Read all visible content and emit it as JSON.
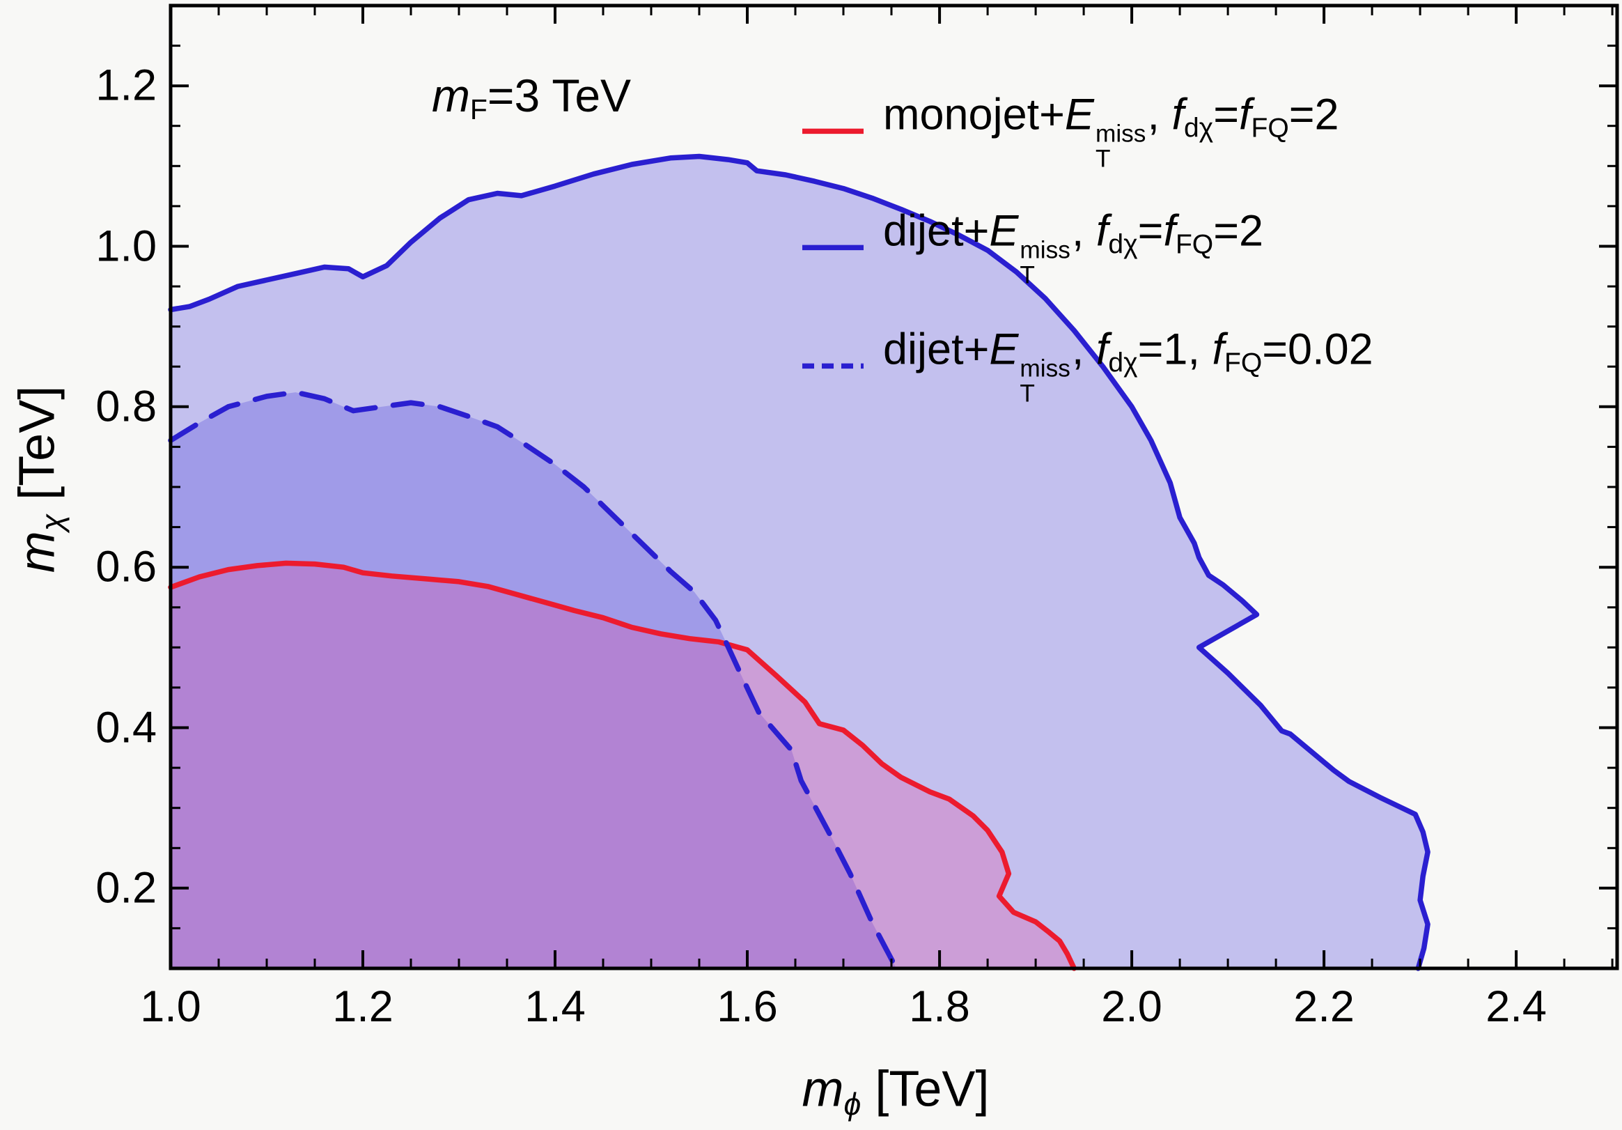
{
  "colors": {
    "background": "#f8f8f6",
    "frame": "#000000",
    "red_line": "#ec1b2e",
    "blue_line": "#2a1fd0",
    "blue_fill": "rgba(88,80,221,0.33)",
    "red_fill": "rgba(232,62,152,0.26)"
  },
  "annotation": {
    "text": "m_F=3 TeV",
    "segments": [
      [
        "i",
        "m"
      ],
      [
        "sub",
        "F"
      ],
      [
        "n",
        "=3 TeV"
      ]
    ]
  },
  "axes": {
    "x": {
      "label_text": "m_phi [TeV]",
      "label_segments": [
        [
          "i",
          "m"
        ],
        [
          "isub",
          "ϕ"
        ],
        [
          "n",
          " [TeV]"
        ]
      ],
      "tick_labels": [
        "1.0",
        "1.2",
        "1.4",
        "1.6",
        "1.8",
        "2.0",
        "2.2",
        "2.4"
      ],
      "tick_values": [
        1.0,
        1.2,
        1.4,
        1.6,
        1.8,
        2.0,
        2.2,
        2.4
      ],
      "minor_step": 0.05
    },
    "y": {
      "label_text": "m_chi [TeV]",
      "label_segments": [
        [
          "i",
          "m"
        ],
        [
          "isub",
          "χ"
        ],
        [
          "n",
          " [TeV]"
        ]
      ],
      "tick_labels": [
        "0.2",
        "0.4",
        "0.6",
        "0.8",
        "1.0",
        "1.2"
      ],
      "tick_values": [
        0.2,
        0.4,
        0.6,
        0.8,
        1.0,
        1.2
      ],
      "minor_step": 0.05
    }
  },
  "legend": {
    "items": [
      {
        "label_text": "monojet+E_T^miss, f_dchi=f_FQ=2",
        "segments": [
          [
            "n",
            "monojet+"
          ],
          [
            "i",
            "E"
          ],
          [
            "ss",
            "miss",
            "T"
          ],
          [
            "n",
            ", "
          ],
          [
            "i",
            "f"
          ],
          [
            "sub",
            "dχ"
          ],
          [
            "n",
            "="
          ],
          [
            "i",
            "f"
          ],
          [
            "sub",
            "FQ"
          ],
          [
            "n",
            "=2"
          ]
        ],
        "line_color": "#ec1b2e",
        "dash": "solid"
      },
      {
        "label_text": "dijet+E_T^miss, f_dchi=f_FQ=2",
        "segments": [
          [
            "n",
            "dijet+"
          ],
          [
            "i",
            "E"
          ],
          [
            "ss",
            "miss",
            "T"
          ],
          [
            "n",
            ", "
          ],
          [
            "i",
            "f"
          ],
          [
            "sub",
            "dχ"
          ],
          [
            "n",
            "="
          ],
          [
            "i",
            "f"
          ],
          [
            "sub",
            "FQ"
          ],
          [
            "n",
            "=2"
          ]
        ],
        "line_color": "#2a1fd0",
        "dash": "solid"
      },
      {
        "label_text": "dijet+E_T^miss, f_dchi=1, f_FQ=0.02",
        "segments": [
          [
            "n",
            "dijet+"
          ],
          [
            "i",
            "E"
          ],
          [
            "ss",
            "miss",
            "T"
          ],
          [
            "n",
            ", "
          ],
          [
            "i",
            "f"
          ],
          [
            "sub",
            "dχ"
          ],
          [
            "n",
            "=1, "
          ],
          [
            "i",
            "f"
          ],
          [
            "sub",
            "FQ"
          ],
          [
            "n",
            "=0.02"
          ]
        ],
        "line_color": "#2a1fd0",
        "dash": "dashed"
      }
    ]
  },
  "chart_data": {
    "type": "area",
    "subtype": "exclusion-contour-regions",
    "title": "m_F = 3 TeV",
    "xlabel": "m_phi [TeV]",
    "ylabel": "m_chi [TeV]",
    "xlim": [
      1.0,
      2.505
    ],
    "ylim": [
      0.1,
      1.3
    ],
    "grid": false,
    "legend_position": "top-right-inside",
    "series": [
      {
        "name": "monojet+ET_miss, f_dchi = f_FQ = 2",
        "style": "solid",
        "color": "#ec1b2e",
        "fill": "rgba(232,62,152,0.26)",
        "closes_to": [
          [
            1.94,
            0.1
          ],
          [
            1.0,
            0.1
          ]
        ],
        "points": [
          [
            1.0,
            0.575
          ],
          [
            1.03,
            0.588
          ],
          [
            1.06,
            0.597
          ],
          [
            1.09,
            0.602
          ],
          [
            1.12,
            0.605
          ],
          [
            1.15,
            0.604
          ],
          [
            1.18,
            0.6
          ],
          [
            1.2,
            0.593
          ],
          [
            1.23,
            0.589
          ],
          [
            1.27,
            0.585
          ],
          [
            1.3,
            0.582
          ],
          [
            1.33,
            0.576
          ],
          [
            1.36,
            0.566
          ],
          [
            1.39,
            0.556
          ],
          [
            1.42,
            0.546
          ],
          [
            1.45,
            0.537
          ],
          [
            1.48,
            0.525
          ],
          [
            1.51,
            0.517
          ],
          [
            1.54,
            0.511
          ],
          [
            1.57,
            0.507
          ],
          [
            1.6,
            0.497
          ],
          [
            1.63,
            0.465
          ],
          [
            1.66,
            0.432
          ],
          [
            1.675,
            0.405
          ],
          [
            1.7,
            0.397
          ],
          [
            1.72,
            0.378
          ],
          [
            1.74,
            0.355
          ],
          [
            1.76,
            0.338
          ],
          [
            1.79,
            0.32
          ],
          [
            1.81,
            0.311
          ],
          [
            1.835,
            0.29
          ],
          [
            1.85,
            0.272
          ],
          [
            1.865,
            0.245
          ],
          [
            1.872,
            0.218
          ],
          [
            1.862,
            0.19
          ],
          [
            1.877,
            0.17
          ],
          [
            1.9,
            0.158
          ],
          [
            1.914,
            0.145
          ],
          [
            1.925,
            0.134
          ],
          [
            1.933,
            0.118
          ],
          [
            1.94,
            0.1
          ]
        ]
      },
      {
        "name": "dijet+ET_miss, f_dchi = f_FQ = 2",
        "style": "solid",
        "color": "#2a1fd0",
        "fill": "rgba(88,80,221,0.33)",
        "closes_to": [
          [
            2.298,
            0.1
          ],
          [
            1.0,
            0.1
          ]
        ],
        "points": [
          [
            1.0,
            0.921
          ],
          [
            1.02,
            0.925
          ],
          [
            1.04,
            0.934
          ],
          [
            1.07,
            0.95
          ],
          [
            1.1,
            0.958
          ],
          [
            1.13,
            0.966
          ],
          [
            1.16,
            0.974
          ],
          [
            1.185,
            0.972
          ],
          [
            1.2,
            0.962
          ],
          [
            1.225,
            0.976
          ],
          [
            1.25,
            1.005
          ],
          [
            1.28,
            1.035
          ],
          [
            1.31,
            1.058
          ],
          [
            1.34,
            1.066
          ],
          [
            1.365,
            1.063
          ],
          [
            1.4,
            1.075
          ],
          [
            1.44,
            1.09
          ],
          [
            1.48,
            1.102
          ],
          [
            1.52,
            1.11
          ],
          [
            1.55,
            1.112
          ],
          [
            1.58,
            1.108
          ],
          [
            1.6,
            1.104
          ],
          [
            1.61,
            1.094
          ],
          [
            1.64,
            1.089
          ],
          [
            1.67,
            1.081
          ],
          [
            1.7,
            1.072
          ],
          [
            1.73,
            1.06
          ],
          [
            1.76,
            1.046
          ],
          [
            1.79,
            1.031
          ],
          [
            1.82,
            1.014
          ],
          [
            1.85,
            0.995
          ],
          [
            1.88,
            0.968
          ],
          [
            1.91,
            0.935
          ],
          [
            1.94,
            0.895
          ],
          [
            1.97,
            0.85
          ],
          [
            2.0,
            0.8
          ],
          [
            2.02,
            0.758
          ],
          [
            2.04,
            0.705
          ],
          [
            2.05,
            0.662
          ],
          [
            2.065,
            0.63
          ],
          [
            2.07,
            0.612
          ],
          [
            2.08,
            0.59
          ],
          [
            2.095,
            0.578
          ],
          [
            2.115,
            0.558
          ],
          [
            2.13,
            0.541
          ],
          [
            2.07,
            0.5
          ],
          [
            2.1,
            0.468
          ],
          [
            2.134,
            0.428
          ],
          [
            2.156,
            0.396
          ],
          [
            2.165,
            0.392
          ],
          [
            2.187,
            0.37
          ],
          [
            2.21,
            0.347
          ],
          [
            2.226,
            0.333
          ],
          [
            2.26,
            0.312
          ],
          [
            2.295,
            0.292
          ],
          [
            2.303,
            0.27
          ],
          [
            2.308,
            0.245
          ],
          [
            2.303,
            0.215
          ],
          [
            2.3,
            0.185
          ],
          [
            2.308,
            0.155
          ],
          [
            2.304,
            0.125
          ],
          [
            2.298,
            0.1
          ]
        ]
      },
      {
        "name": "dijet+ET_miss, f_dchi = 1, f_FQ = 0.02",
        "style": "dashed",
        "color": "#2a1fd0",
        "fill": "rgba(88,80,221,0.33)",
        "closes_to": [
          [
            1.755,
            0.1
          ],
          [
            1.0,
            0.1
          ]
        ],
        "points": [
          [
            1.0,
            0.758
          ],
          [
            1.03,
            0.78
          ],
          [
            1.06,
            0.8
          ],
          [
            1.1,
            0.813
          ],
          [
            1.13,
            0.818
          ],
          [
            1.16,
            0.81
          ],
          [
            1.19,
            0.795
          ],
          [
            1.22,
            0.8
          ],
          [
            1.25,
            0.805
          ],
          [
            1.28,
            0.8
          ],
          [
            1.31,
            0.788
          ],
          [
            1.34,
            0.775
          ],
          [
            1.37,
            0.752
          ],
          [
            1.4,
            0.728
          ],
          [
            1.43,
            0.7
          ],
          [
            1.46,
            0.665
          ],
          [
            1.49,
            0.63
          ],
          [
            1.52,
            0.595
          ],
          [
            1.545,
            0.569
          ],
          [
            1.567,
            0.534
          ],
          [
            1.578,
            0.506
          ],
          [
            1.593,
            0.467
          ],
          [
            1.612,
            0.419
          ],
          [
            1.646,
            0.372
          ],
          [
            1.656,
            0.334
          ],
          [
            1.686,
            0.267
          ],
          [
            1.707,
            0.218
          ],
          [
            1.73,
            0.157
          ],
          [
            1.755,
            0.1
          ]
        ]
      }
    ]
  }
}
